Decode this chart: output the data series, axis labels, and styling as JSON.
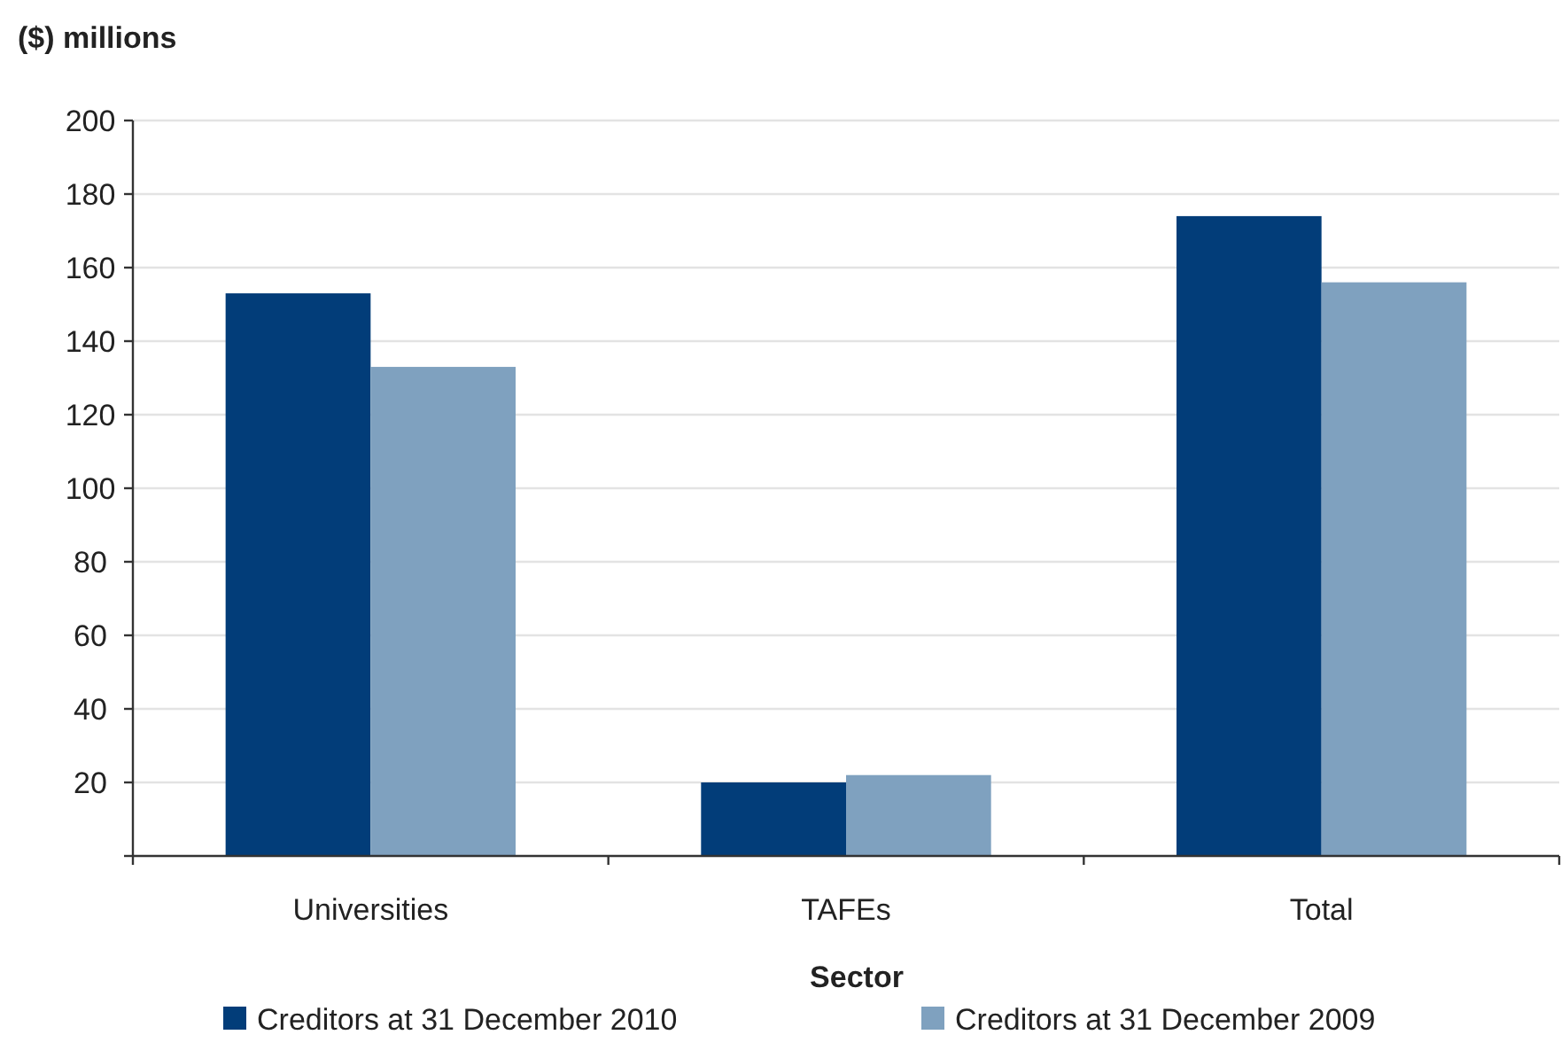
{
  "chart_data": {
    "type": "bar",
    "ylabel": "($) millions",
    "xlabel": "Sector",
    "categories": [
      "Universities",
      "TAFEs",
      "Total"
    ],
    "series": [
      {
        "name": "Creditors at 31 December 2010",
        "color": "#023d79",
        "values": [
          153,
          20,
          174
        ]
      },
      {
        "name": "Creditors at 31 December 2009",
        "color": "#7fa1bf",
        "values": [
          133,
          22,
          156
        ]
      }
    ],
    "ylim": [
      0,
      200
    ],
    "yticks": [
      {
        "value": 0,
        "label": null
      },
      20,
      40,
      60,
      80,
      100,
      120,
      140,
      160,
      180,
      200
    ],
    "grid": "y",
    "legend": "bottom"
  }
}
